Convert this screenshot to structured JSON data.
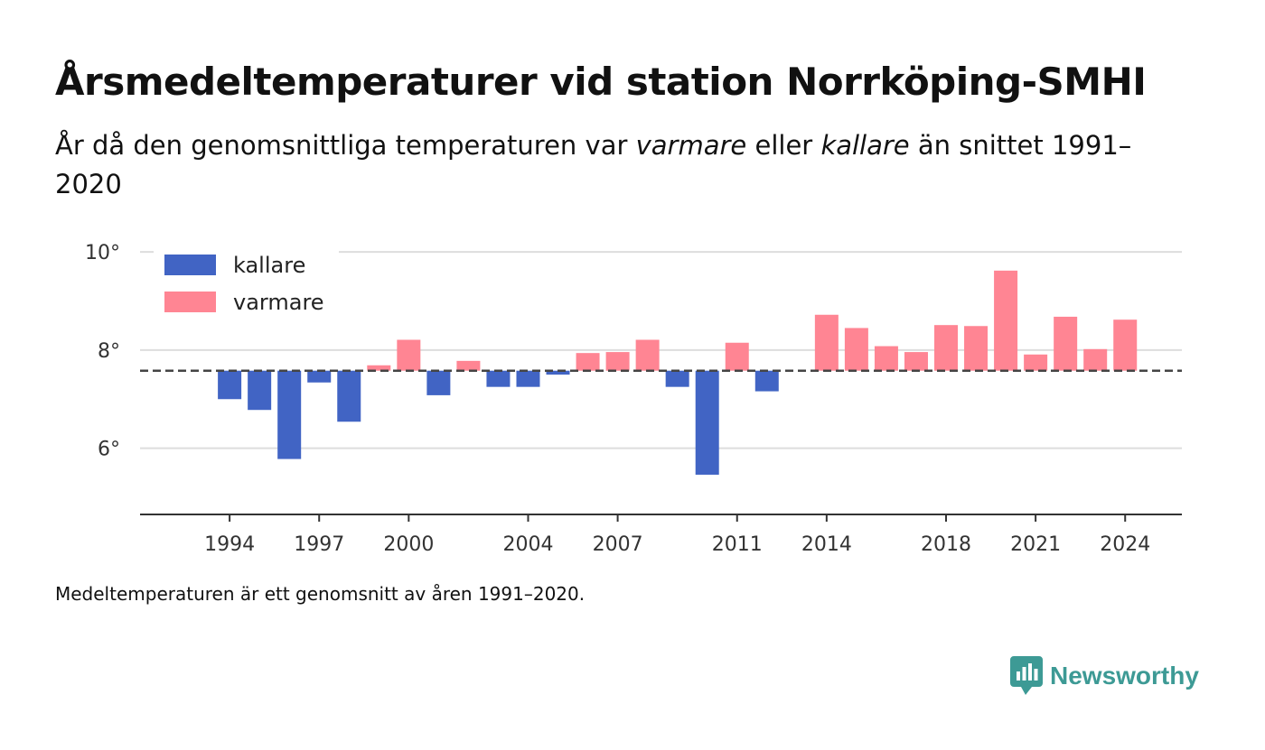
{
  "header": {
    "title": "Årsmedeltemperaturer vid station Norrköping-SMHI",
    "subtitle_prefix": "År då den genomsnittliga temperaturen var ",
    "subtitle_warm": "varmare",
    "subtitle_mid": " eller ",
    "subtitle_cold": "kallare",
    "subtitle_suffix": " än snittet 1991–2020"
  },
  "footer": {
    "note": "Medeltemperaturen är ett genomsnitt av åren 1991–2020.",
    "brand": "Newsworthy"
  },
  "colors": {
    "cold": "#4164c4",
    "warm": "#ff8593",
    "grid": "#dddddd",
    "axis": "#333333",
    "brand": "#3d9a95"
  },
  "chart_data": {
    "type": "bar",
    "title": "Årsmedeltemperaturer vid station Norrköping-SMHI",
    "baseline": 7.58,
    "baseline_style": "dashed",
    "ylim": [
      4.65,
      10.5
    ],
    "yticks": [
      6,
      8,
      10
    ],
    "ytick_labels": [
      "6°",
      "8°",
      "10°"
    ],
    "xticks": [
      1994,
      1997,
      2000,
      2004,
      2007,
      2011,
      2014,
      2018,
      2021,
      2024
    ],
    "xlim": [
      1991.0,
      2025.9
    ],
    "grid": true,
    "legend_position": "top-left",
    "series": [
      {
        "name": "kallare",
        "color": "#4164c4"
      },
      {
        "name": "varmare",
        "color": "#ff8593"
      }
    ],
    "x": [
      1994,
      1995,
      1996,
      1997,
      1998,
      1999,
      2000,
      2001,
      2002,
      2003,
      2004,
      2005,
      2006,
      2007,
      2008,
      2009,
      2010,
      2011,
      2012,
      2014,
      2015,
      2016,
      2017,
      2018,
      2019,
      2020,
      2021,
      2022,
      2023,
      2024
    ],
    "values": [
      7.0,
      6.78,
      5.78,
      7.34,
      6.54,
      7.69,
      8.21,
      7.08,
      7.78,
      7.25,
      7.25,
      7.5,
      7.94,
      7.96,
      8.21,
      7.25,
      5.46,
      8.15,
      7.16,
      8.72,
      8.45,
      8.08,
      7.96,
      8.51,
      8.49,
      9.62,
      7.91,
      8.68,
      8.02,
      8.62
    ]
  }
}
